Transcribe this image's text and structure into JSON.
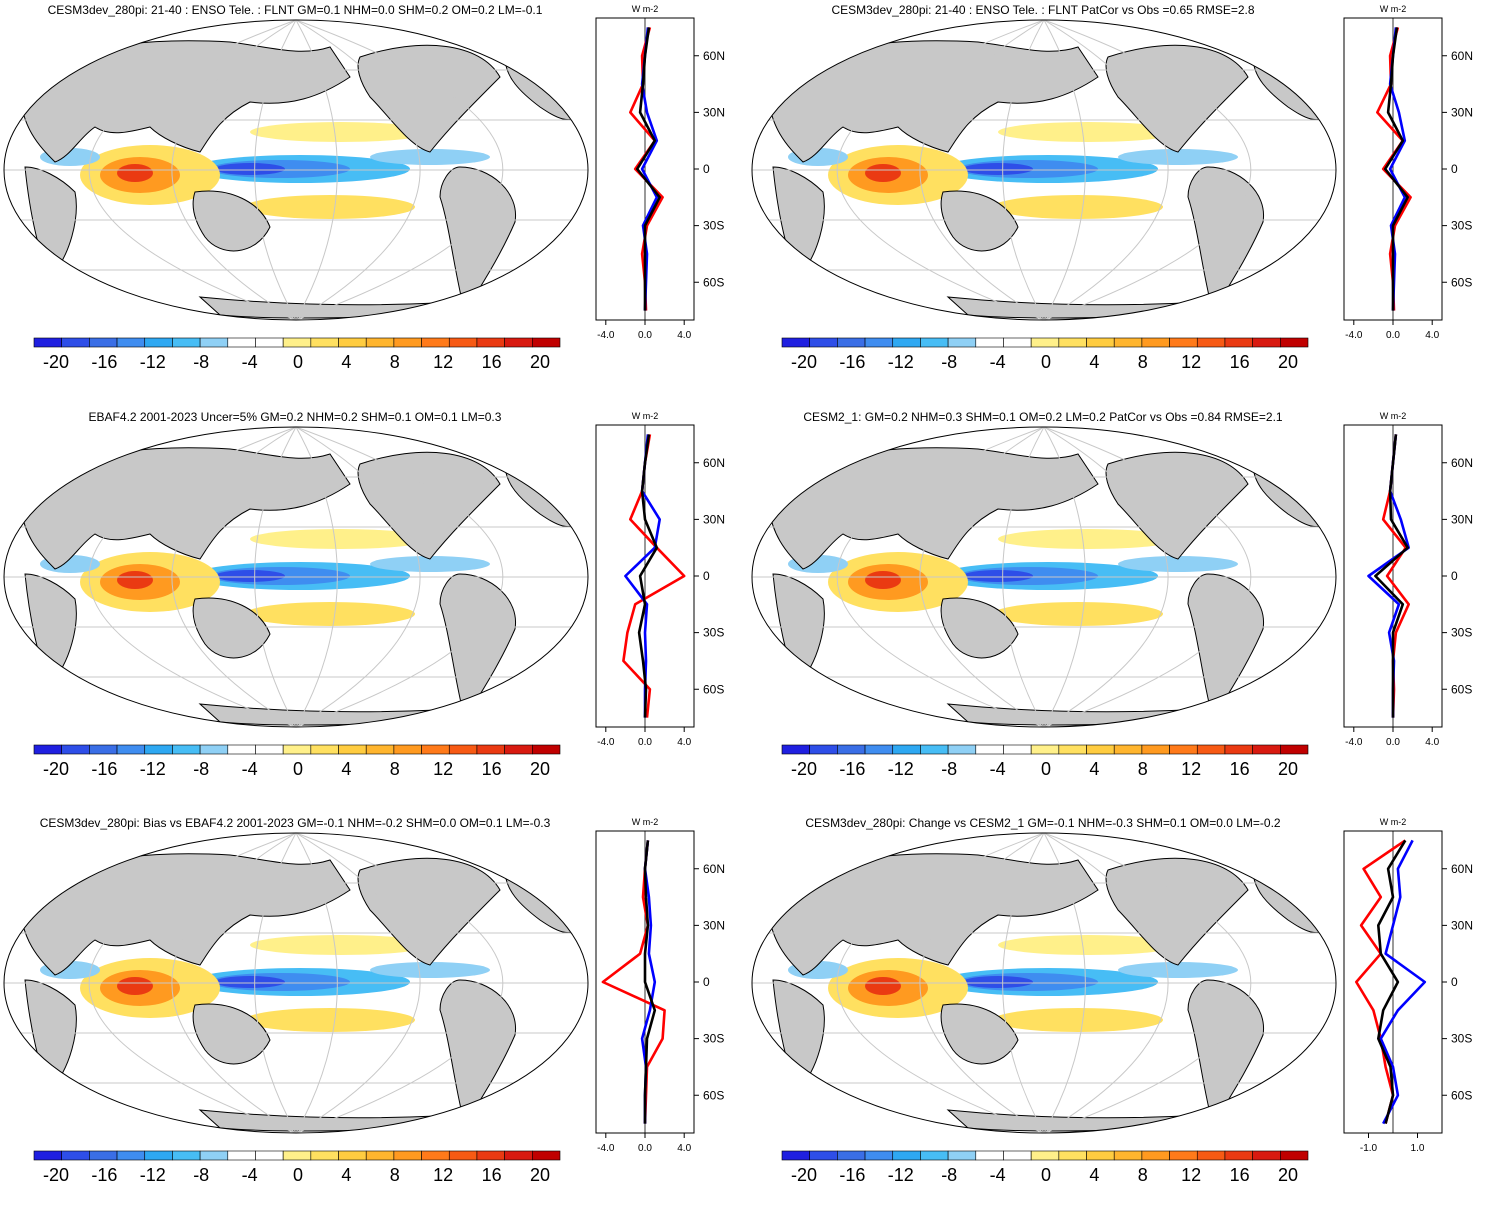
{
  "panels": [
    {
      "title": "CESM3dev_280pi: 21-40 : ENSO Tele. : FLNT GM=0.1 NHM=0.0 SHM=0.2 OM=0.2 LM=-0.1",
      "profile_unit": "W m-2",
      "profile_ticks": [
        "-4.0",
        "0.0",
        "4.0"
      ],
      "lat_labels": [
        "60N",
        "30N",
        "0",
        "30S",
        "60S"
      ],
      "colorbar_ticks": [
        "-20",
        "-16",
        "-12",
        "-8",
        "-4",
        "0",
        "4",
        "8",
        "12",
        "16",
        "20"
      ]
    },
    {
      "title": "CESM3dev_280pi: 21-40 : ENSO Tele. : FLNT PatCor vs Obs =0.65 RMSE=2.8",
      "profile_unit": "W m-2",
      "profile_ticks": [
        "-4.0",
        "0.0",
        "4.0"
      ],
      "lat_labels": [
        "60N",
        "30N",
        "0",
        "30S",
        "60S"
      ],
      "colorbar_ticks": [
        "-20",
        "-16",
        "-12",
        "-8",
        "-4",
        "0",
        "4",
        "8",
        "12",
        "16",
        "20"
      ]
    },
    {
      "title": "EBAF4.2 2001-2023 Uncer=5% GM=0.2 NHM=0.2 SHM=0.1 OM=0.1 LM=0.3",
      "profile_unit": "W m-2",
      "profile_ticks": [
        "-4.0",
        "0.0",
        "4.0"
      ],
      "lat_labels": [
        "60N",
        "30N",
        "0",
        "30S",
        "60S"
      ],
      "colorbar_ticks": [
        "-20",
        "-16",
        "-12",
        "-8",
        "-4",
        "0",
        "4",
        "8",
        "12",
        "16",
        "20"
      ]
    },
    {
      "title": "CESM2_1: GM=0.2 NHM=0.3 SHM=0.1 OM=0.2 LM=0.2 PatCor vs Obs =0.84 RMSE=2.1",
      "profile_unit": "W m-2",
      "profile_ticks": [
        "-4.0",
        "0.0",
        "4.0"
      ],
      "lat_labels": [
        "60N",
        "30N",
        "0",
        "30S",
        "60S"
      ],
      "colorbar_ticks": [
        "-20",
        "-16",
        "-12",
        "-8",
        "-4",
        "0",
        "4",
        "8",
        "12",
        "16",
        "20"
      ]
    },
    {
      "title": "CESM3dev_280pi: Bias vs EBAF4.2 2001-2023 GM=-0.1 NHM=-0.2 SHM=0.0 OM=0.1 LM=-0.3",
      "profile_unit": "W m-2",
      "profile_ticks": [
        "-4.0",
        "0.0",
        "4.0"
      ],
      "lat_labels": [
        "60N",
        "30N",
        "0",
        "30S",
        "60S"
      ],
      "colorbar_ticks": [
        "-20",
        "-16",
        "-12",
        "-8",
        "-4",
        "0",
        "4",
        "8",
        "12",
        "16",
        "20"
      ]
    },
    {
      "title": "CESM3dev_280pi: Change vs CESM2_1 GM=-0.1 NHM=-0.3 SHM=0.1 OM=0.0 LM=-0.2",
      "profile_unit": "W m-2",
      "profile_ticks": [
        "-1.0",
        "1.0"
      ],
      "lat_labels": [
        "60N",
        "30N",
        "0",
        "30S",
        "60S"
      ],
      "colorbar_ticks": [
        "-20",
        "-16",
        "-12",
        "-8",
        "-4",
        "0",
        "4",
        "8",
        "12",
        "16",
        "20"
      ]
    }
  ],
  "colors": {
    "land": "#c8c8c8",
    "coast": "#000000",
    "grid": "#c8c8c8",
    "profile_model": "#ff0000",
    "profile_obs": "#0000ff",
    "profile_mean": "#000000",
    "colorbar": [
      "#1f1fe0",
      "#2e4ee8",
      "#3a6ee6",
      "#3f8df0",
      "#2ea8f2",
      "#47bdf5",
      "#8fd0f5",
      "#ffffff",
      "#ffffff",
      "#fff08a",
      "#ffe060",
      "#ffcc40",
      "#ffb52e",
      "#ff9a20",
      "#ff7a1a",
      "#f75a14",
      "#ea3a12",
      "#d81a10",
      "#c00000"
    ]
  },
  "chart_data": [
    {
      "type": "map",
      "panel": "CESM3dev_280pi ENSO Tele. FLNT",
      "profile": {
        "lat": [
          75,
          60,
          45,
          30,
          15,
          0,
          -15,
          -30,
          -45,
          -60,
          -75
        ],
        "model": [
          0.5,
          -0.3,
          -0.2,
          -1.5,
          1.0,
          -1.0,
          1.8,
          0.2,
          -0.3,
          0.0,
          0.1
        ],
        "obs": [
          0.3,
          0.0,
          -0.3,
          0.2,
          1.2,
          -0.3,
          1.2,
          -0.2,
          0.2,
          0.1,
          0.0
        ],
        "mean": [
          0.4,
          0.0,
          -0.2,
          -0.5,
          1.0,
          -0.8,
          1.5,
          0.0,
          0.0,
          0.0,
          0.0
        ]
      }
    },
    {
      "type": "map",
      "panel": "CESM3dev_280pi ENSO Tele. FLNT PatCor",
      "profile": {
        "lat": [
          75,
          60,
          45,
          30,
          15,
          0,
          -15,
          -30,
          -45,
          -60,
          -75
        ],
        "model": [
          0.5,
          -0.3,
          -0.2,
          -1.6,
          1.0,
          -1.0,
          1.8,
          0.2,
          -0.3,
          0.0,
          0.1
        ],
        "obs": [
          0.3,
          0.0,
          -0.3,
          0.6,
          1.2,
          -0.3,
          1.2,
          -0.2,
          0.2,
          0.1,
          0.0
        ],
        "mean": [
          0.4,
          0.0,
          -0.2,
          -0.5,
          1.0,
          -0.8,
          1.5,
          0.0,
          0.0,
          0.0,
          0.0
        ]
      }
    },
    {
      "type": "map",
      "panel": "EBAF4.2 2001-2023",
      "profile": {
        "lat": [
          75,
          60,
          45,
          30,
          15,
          0,
          -15,
          -30,
          -45,
          -60,
          -75
        ],
        "model": [
          0.5,
          0.0,
          -0.3,
          -1.5,
          1.2,
          4.0,
          -1.0,
          -1.8,
          -2.2,
          0.5,
          0.2
        ],
        "obs": [
          0.3,
          0.0,
          -0.3,
          1.5,
          1.0,
          -2.0,
          0.2,
          0.0,
          0.1,
          0.0,
          0.0
        ],
        "mean": [
          0.4,
          0.0,
          -0.3,
          0.0,
          1.2,
          -0.5,
          0.0,
          -0.6,
          -0.2,
          0.1,
          0.0
        ]
      }
    },
    {
      "type": "map",
      "panel": "CESM2_1",
      "profile": {
        "lat": [
          75,
          60,
          45,
          30,
          15,
          0,
          -15,
          -30,
          -45,
          -60,
          -75
        ],
        "model": [
          0.3,
          0.0,
          -0.3,
          -1.0,
          1.3,
          -0.6,
          1.6,
          0.3,
          0.0,
          0.1,
          0.0
        ],
        "obs": [
          0.3,
          0.0,
          -0.3,
          0.8,
          1.6,
          -2.5,
          0.6,
          -0.4,
          0.1,
          0.0,
          0.0
        ],
        "mean": [
          0.3,
          0.0,
          -0.3,
          -0.2,
          1.5,
          -1.8,
          1.0,
          0.0,
          0.0,
          0.0,
          0.0
        ]
      }
    },
    {
      "type": "map",
      "panel": "Bias vs EBAF4.2",
      "profile": {
        "lat": [
          75,
          60,
          45,
          30,
          15,
          0,
          -15,
          -30,
          -45,
          -60,
          -75
        ],
        "model": [
          0.3,
          0.0,
          -0.2,
          0.3,
          -0.5,
          -4.3,
          2.0,
          1.8,
          0.2,
          0.1,
          0.0
        ],
        "obs": [
          0.3,
          0.0,
          0.4,
          0.6,
          0.4,
          1.0,
          0.5,
          -0.3,
          0.1,
          0.0,
          0.0
        ],
        "mean": [
          0.3,
          0.0,
          0.1,
          0.3,
          0.0,
          0.0,
          1.0,
          0.2,
          0.1,
          0.0,
          0.0
        ]
      }
    },
    {
      "type": "map",
      "panel": "Change vs CESM2_1",
      "profile": {
        "lat": [
          75,
          60,
          45,
          30,
          15,
          0,
          -15,
          -30,
          -45,
          -60,
          -75
        ],
        "model": [
          0.5,
          -1.2,
          -0.5,
          -1.3,
          -0.5,
          -1.5,
          -0.8,
          -0.5,
          -0.3,
          0.0,
          -0.3
        ],
        "obs": [
          0.8,
          0.2,
          0.3,
          0.0,
          -0.3,
          1.3,
          0.2,
          -0.5,
          0.0,
          0.2,
          -0.4
        ],
        "mean": [
          0.5,
          -0.2,
          0.0,
          -0.6,
          -0.5,
          0.2,
          -0.4,
          -0.6,
          -0.1,
          0.0,
          -0.3
        ]
      }
    }
  ]
}
